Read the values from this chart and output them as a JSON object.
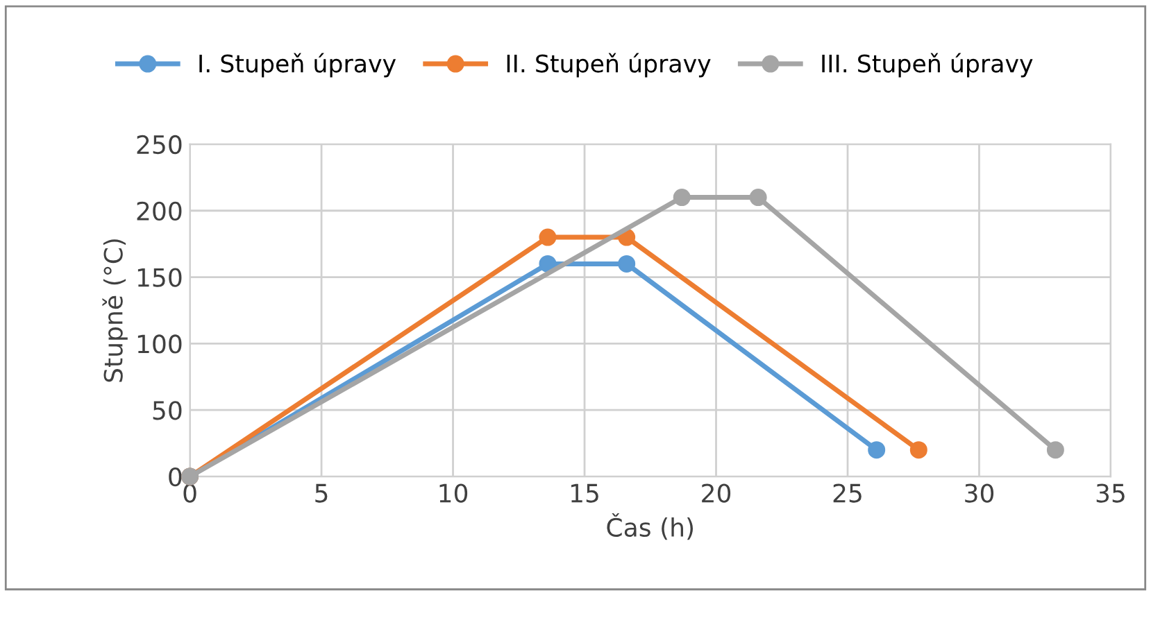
{
  "chart_data": {
    "type": "line",
    "xlabel": "Čas (h)",
    "ylabel": "Stupně (°C)",
    "xlim": [
      0,
      35
    ],
    "xticks": [
      0,
      5,
      10,
      15,
      20,
      25,
      30,
      35
    ],
    "ylim": [
      0,
      250
    ],
    "yticks": [
      0,
      50,
      100,
      150,
      200,
      250
    ],
    "grid": true,
    "legend": "top",
    "marker": "circle",
    "line_style": "solid",
    "series": [
      {
        "name": "I. Stupeň úpravy",
        "color": "#5b9bd5",
        "x": [
          0,
          13.6,
          16.6,
          26.1
        ],
        "values": [
          0,
          160,
          160,
          20
        ]
      },
      {
        "name": "II. Stupeň úpravy",
        "color": "#ed7d31",
        "x": [
          0,
          13.6,
          16.6,
          27.7
        ],
        "values": [
          0,
          180,
          180,
          20
        ]
      },
      {
        "name": "III. Stupeň úpravy",
        "color": "#a5a5a5",
        "x": [
          0,
          18.7,
          21.6,
          32.9
        ],
        "values": [
          0,
          210,
          210,
          20
        ]
      }
    ]
  }
}
